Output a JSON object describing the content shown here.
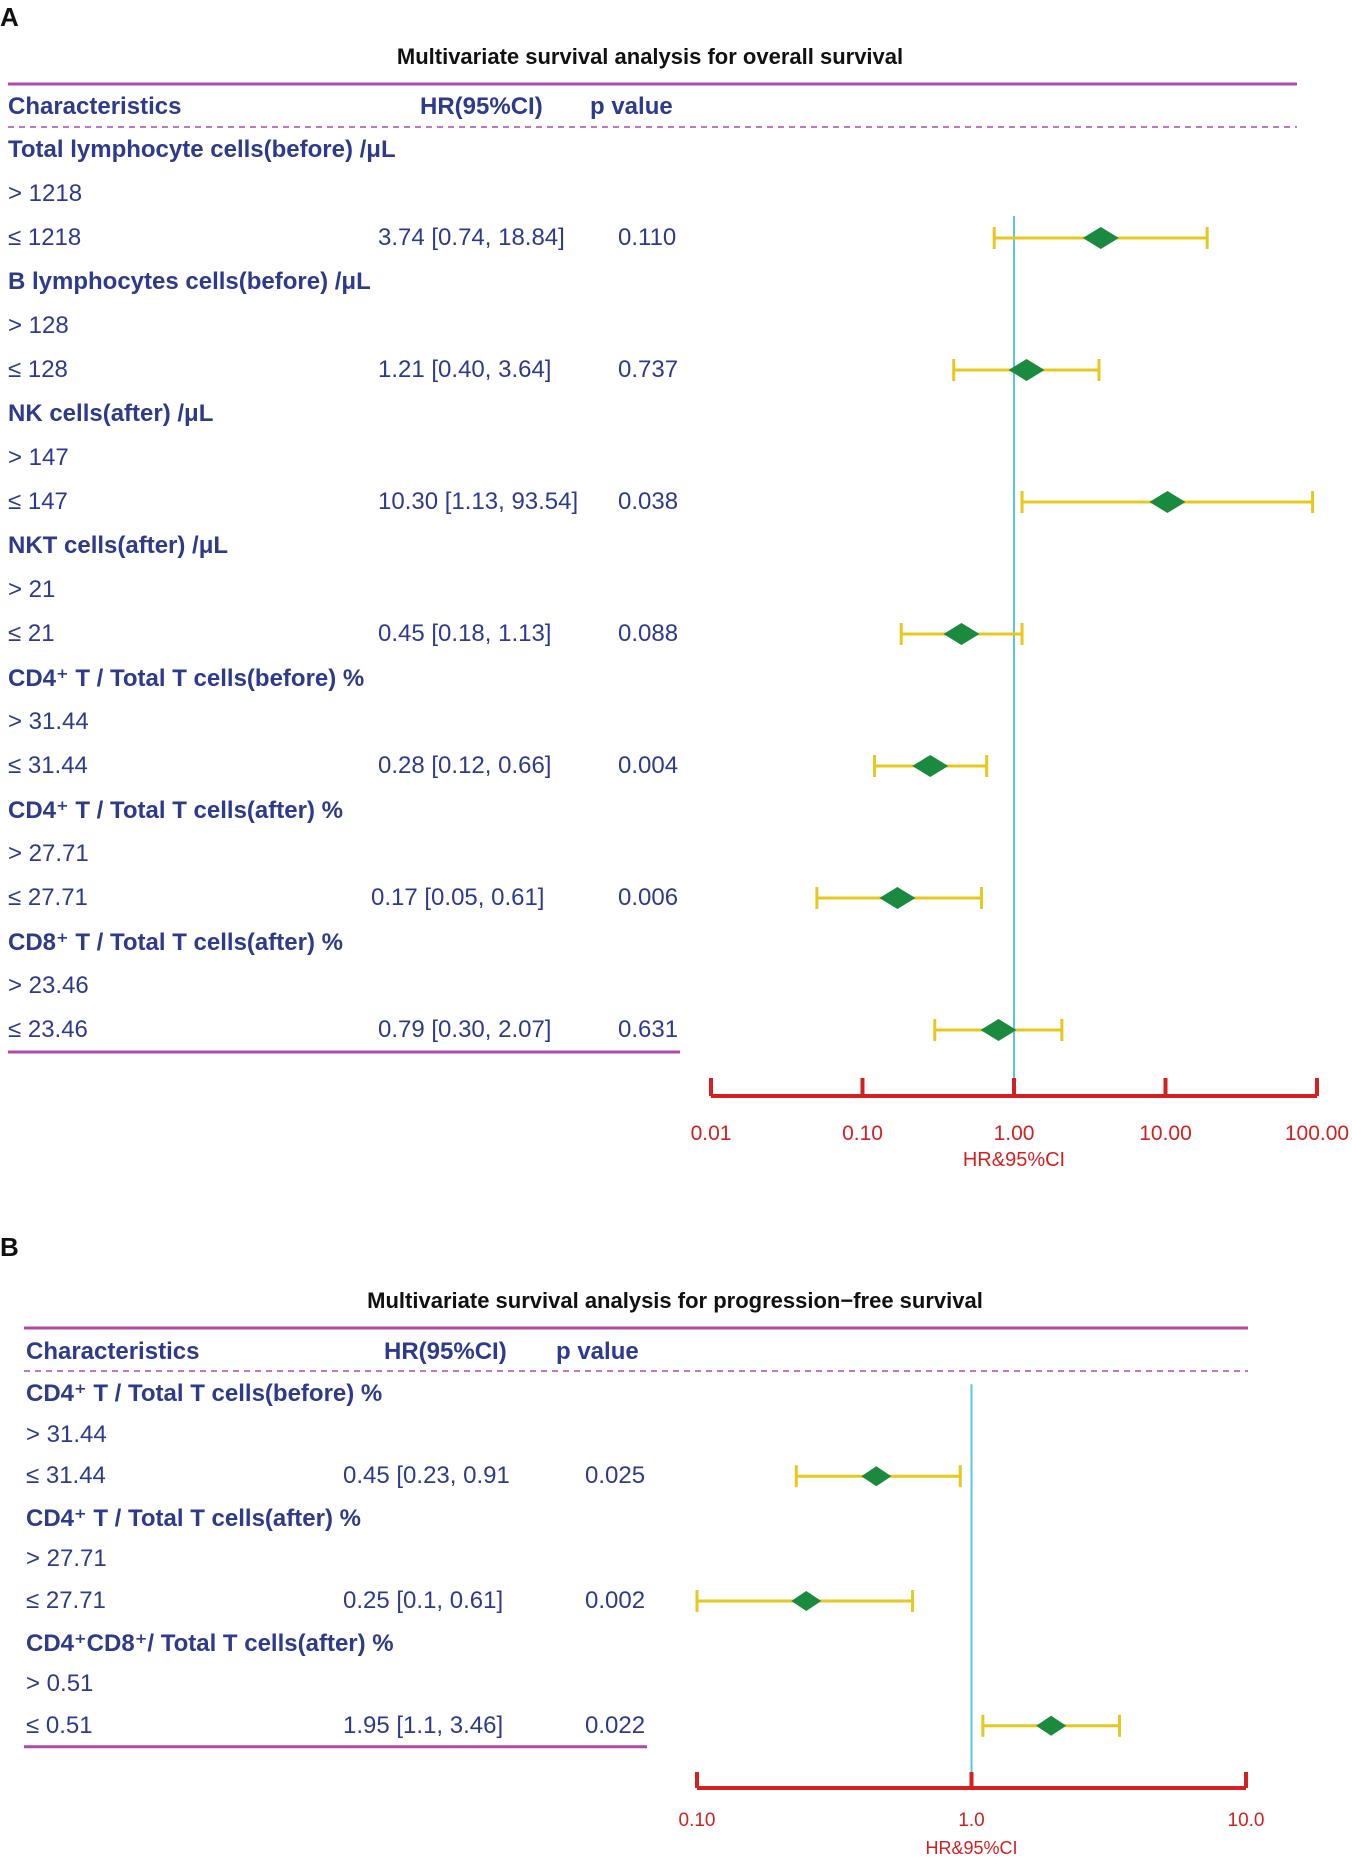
{
  "chart_data": [
    {
      "type": "forest",
      "panel_label": "A",
      "title": "Multivariate survival analysis  for overall survival",
      "columns": [
        "Characteristics",
        "HR(95%CI)",
        "p value"
      ],
      "xlabel": "HR&95%CI",
      "xscale": "log",
      "xlim": [
        0.01,
        100
      ],
      "ticks": [
        0.01,
        0.1,
        1,
        10,
        100
      ],
      "tick_labels": [
        "0.01",
        "0.10",
        "1.00",
        "10.00",
        "100.00"
      ],
      "reference": 1,
      "groups": [
        {
          "label": "Total lymphocyte cells(before)  /μL",
          "ref": "> 1218",
          "level": "≤ 1218",
          "hr_text": "3.74 [0.74, 18.84]",
          "p": "0.110",
          "hr": 3.74,
          "lo": 0.74,
          "hi": 18.84
        },
        {
          "label": "B lymphocytes cells(before)  /μL",
          "ref": "> 128",
          "level": "≤ 128",
          "hr_text": "1.21 [0.40, 3.64]",
          "p": "0.737",
          "hr": 1.21,
          "lo": 0.4,
          "hi": 3.64
        },
        {
          "label": "NK cells(after)  /μL",
          "ref": "> 147",
          "level": "≤ 147",
          "hr_text": "10.30 [1.13, 93.54]",
          "p": "0.038",
          "hr": 10.3,
          "lo": 1.13,
          "hi": 93.54
        },
        {
          "label": "NKT cells(after) /μL",
          "ref": "> 21",
          "level": "≤ 21",
          "hr_text": "0.45 [0.18, 1.13]",
          "p": "0.088",
          "hr": 0.45,
          "lo": 0.18,
          "hi": 1.13
        },
        {
          "label": "CD4⁺ T / Total T cells(before)  %",
          "ref": "> 31.44",
          "level": "≤ 31.44",
          "hr_text": "0.28 [0.12, 0.66]",
          "p": "0.004",
          "hr": 0.28,
          "lo": 0.12,
          "hi": 0.66
        },
        {
          "label": "CD4⁺ T / Total T cells(after)  %",
          "ref": "> 27.71",
          "level": "≤ 27.71",
          "hr_text": "0.17 [0.05, 0.61]",
          "p": "0.006",
          "hr": 0.17,
          "lo": 0.05,
          "hi": 0.61
        },
        {
          "label": "CD8⁺ T / Total T cells(after)   %",
          "ref": "> 23.46",
          "level": "≤  23.46",
          "hr_text": "0.79 [0.30, 2.07]",
          "p": "0.631",
          "hr": 0.79,
          "lo": 0.3,
          "hi": 2.07
        }
      ]
    },
    {
      "type": "forest",
      "panel_label": "B",
      "title": "Multivariate survival analysis  for progression−free survival",
      "columns": [
        "Characteristics",
        "HR(95%CI)",
        "p value"
      ],
      "xlabel": "HR&95%CI",
      "xscale": "log",
      "xlim": [
        0.1,
        10
      ],
      "ticks": [
        0.1,
        1,
        10
      ],
      "tick_labels": [
        "0.10",
        "1.0",
        "10.0"
      ],
      "reference": 1,
      "groups": [
        {
          "label": "CD4⁺ T / Total T cells(before)  %",
          "ref": "> 31.44",
          "level": "≤ 31.44",
          "hr_text": "0.45 [0.23, 0.91",
          "p": "0.025",
          "hr": 0.45,
          "lo": 0.23,
          "hi": 0.91
        },
        {
          "label": "CD4⁺ T / Total T cells(after)   %",
          "ref": "> 27.71",
          "level": "≤ 27.71",
          "hr_text": "0.25 [0.1, 0.61]",
          "p": "0.002",
          "hr": 0.25,
          "lo": 0.1,
          "hi": 0.61
        },
        {
          "label": "CD4⁺CD8⁺/ Total T cells(after) %",
          "ref": "> 0.51",
          "level": "≤ 0.51",
          "hr_text": "1.95 [1.1, 3.46]",
          "p": "0.022",
          "hr": 1.95,
          "lo": 1.1,
          "hi": 3.46
        }
      ]
    }
  ],
  "colors": {
    "text": "#2e3a8c",
    "rule": "#b04aa8",
    "axis": "#d42020",
    "ci": "#e6c81e",
    "point": "#1a8a3e",
    "reference": "#5bc6e8"
  }
}
